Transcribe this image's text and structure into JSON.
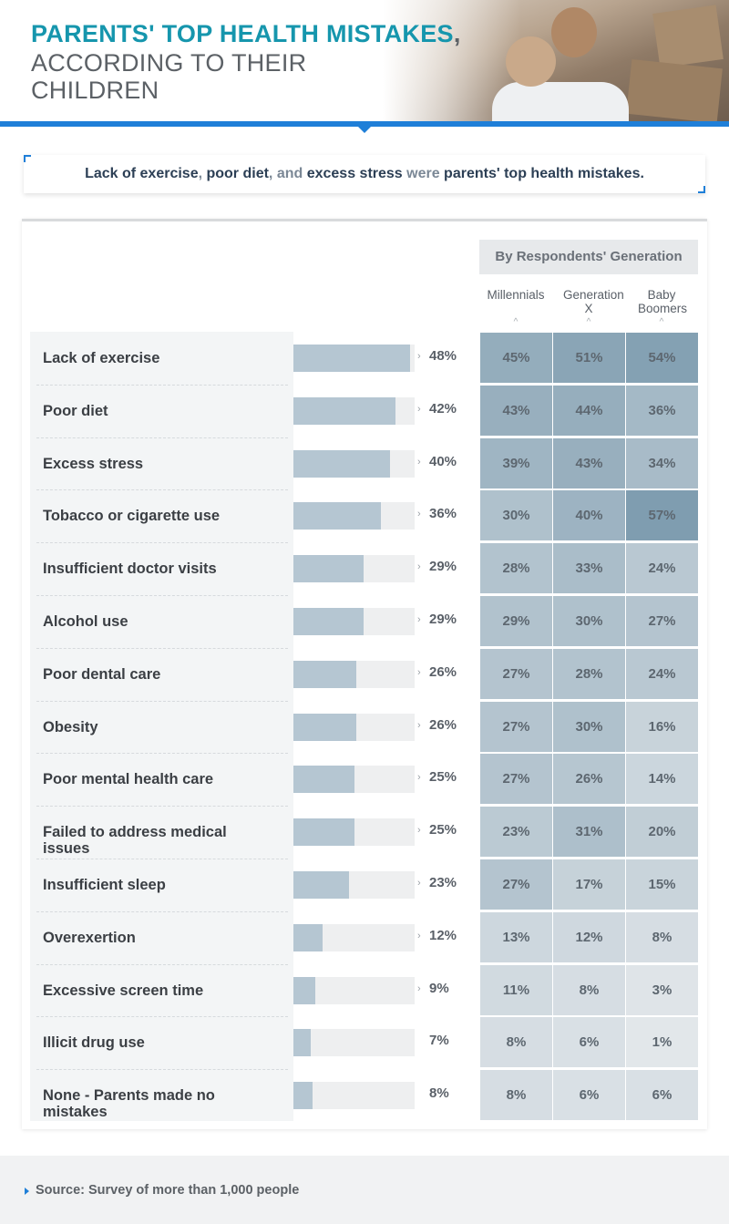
{
  "header": {
    "title_highlight": "PARENTS' TOP HEALTH MISTAKES",
    "title_comma": ",",
    "title_line2": "ACCORDING TO THEIR",
    "title_line3": "CHILDREN"
  },
  "callout": {
    "part1": "Lack of exercise",
    "sep1": ", ",
    "part2": "poor diet",
    "sep2": ", and ",
    "part3": "excess stress",
    "sep3": " were ",
    "part4": "parents' top health mistakes."
  },
  "colors": {
    "accent_teal": "#1696ad",
    "accent_blue": "#1f7fd8",
    "bar_fill": "#b5c6d2",
    "heat_low": "#e4e8eb",
    "heat_high": "#7f9db0"
  },
  "chart_data": {
    "type": "bar",
    "categories": [
      "Lack of exercise",
      "Poor diet",
      "Excess stress",
      "Tobacco or cigarette use",
      "Insufficient doctor visits",
      "Alcohol use",
      "Poor dental care",
      "Obesity",
      "Poor mental health care",
      "Failed to address medical issues",
      "Insufficient sleep",
      "Overexertion",
      "Excessive screen time",
      "Illicit drug use",
      "None - Parents made no mistakes"
    ],
    "values": [
      48,
      42,
      40,
      36,
      29,
      29,
      26,
      26,
      25,
      25,
      23,
      12,
      9,
      7,
      8
    ],
    "value_labels": [
      "48%",
      "42%",
      "40%",
      "36%",
      "29%",
      "29%",
      "26%",
      "26%",
      "25%",
      "25%",
      "23%",
      "12%",
      "9%",
      "7%",
      "8%"
    ],
    "xlim": [
      0,
      50
    ],
    "heatmap": {
      "title": "By Respondents' Generation",
      "columns": [
        "Millennials",
        "Generation X",
        "Baby Boomers"
      ],
      "values": [
        [
          45,
          51,
          54
        ],
        [
          43,
          44,
          36
        ],
        [
          39,
          43,
          34
        ],
        [
          30,
          40,
          57
        ],
        [
          28,
          33,
          24
        ],
        [
          29,
          30,
          27
        ],
        [
          27,
          28,
          24
        ],
        [
          27,
          30,
          16
        ],
        [
          27,
          26,
          14
        ],
        [
          23,
          31,
          20
        ],
        [
          27,
          17,
          15
        ],
        [
          13,
          12,
          8
        ],
        [
          11,
          8,
          3
        ],
        [
          8,
          6,
          1
        ],
        [
          8,
          6,
          6
        ]
      ],
      "labels": [
        [
          "45%",
          "51%",
          "54%"
        ],
        [
          "43%",
          "44%",
          "36%"
        ],
        [
          "39%",
          "43%",
          "34%"
        ],
        [
          "30%",
          "40%",
          "57%"
        ],
        [
          "28%",
          "33%",
          "24%"
        ],
        [
          "29%",
          "30%",
          "27%"
        ],
        [
          "27%",
          "28%",
          "24%"
        ],
        [
          "27%",
          "30%",
          "16%"
        ],
        [
          "27%",
          "26%",
          "14%"
        ],
        [
          "23%",
          "31%",
          "20%"
        ],
        [
          "27%",
          "17%",
          "15%"
        ],
        [
          "13%",
          "12%",
          "8%"
        ],
        [
          "11%",
          "8%",
          "3%"
        ],
        [
          "8%",
          "6%",
          "1%"
        ],
        [
          "8%",
          "6%",
          "6%"
        ]
      ]
    }
  },
  "footer": {
    "source": "Source: Survey of more than 1,000 people"
  }
}
